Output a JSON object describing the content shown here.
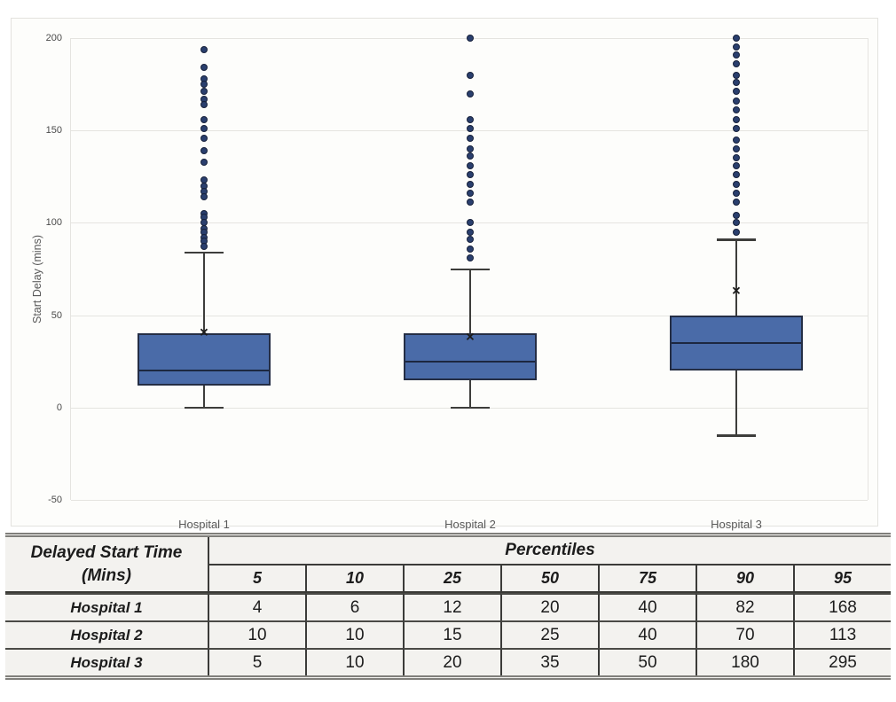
{
  "chart_data": {
    "type": "boxplot",
    "title": "",
    "xlabel": "",
    "ylabel": "Start Delay (mins)",
    "ylim": [
      -50,
      200
    ],
    "yticks": [
      200,
      150,
      100,
      50,
      0,
      -50
    ],
    "grid": true,
    "legend": "none",
    "categories": [
      "Hospital 1",
      "Hospital 2",
      "Hospital 3"
    ],
    "series": [
      {
        "name": "Hospital 1",
        "q1": 12,
        "median": 20,
        "q3": 40,
        "whisker_low": 0,
        "whisker_high": 84,
        "mean": 40,
        "outliers": [
          194,
          184,
          178,
          175,
          171,
          167,
          164,
          156,
          151,
          146,
          139,
          133,
          123,
          120,
          117,
          114,
          105,
          103,
          100,
          97,
          95,
          92,
          90,
          87
        ]
      },
      {
        "name": "Hospital 2",
        "q1": 15,
        "median": 25,
        "q3": 40,
        "whisker_low": 0,
        "whisker_high": 75,
        "mean": 38,
        "outliers": [
          200,
          180,
          170,
          156,
          151,
          146,
          140,
          136,
          131,
          126,
          121,
          116,
          111,
          100,
          95,
          91,
          86,
          81
        ]
      },
      {
        "name": "Hospital 3",
        "q1": 20,
        "median": 35,
        "q3": 50,
        "whisker_low": -15,
        "whisker_high": 91,
        "mean": 63,
        "outliers": [
          200,
          195,
          191,
          186,
          180,
          176,
          171,
          166,
          161,
          156,
          151,
          145,
          140,
          135,
          131,
          126,
          121,
          116,
          111,
          104,
          100,
          95
        ]
      }
    ],
    "colors": {
      "box_fill": "#4a6ba8",
      "box_border": "#252e45",
      "median_line": "#1c2740",
      "whisker": "#3d3d3b",
      "outlier_fill": "#2a3f6e",
      "outlier_border": "#16203a",
      "grid_line": "#e5e4e0",
      "mean_marker": "#1a1a1a"
    }
  },
  "table": {
    "corner_header_line1": "Delayed Start Time",
    "corner_header_line2": "(Mins)",
    "group_header": "Percentiles",
    "columns": [
      "5",
      "10",
      "25",
      "50",
      "75",
      "90",
      "95"
    ],
    "rows": [
      {
        "label": "Hospital 1",
        "values": [
          "4",
          "6",
          "12",
          "20",
          "40",
          "82",
          "168"
        ]
      },
      {
        "label": "Hospital 2",
        "values": [
          "10",
          "10",
          "15",
          "25",
          "40",
          "70",
          "113"
        ]
      },
      {
        "label": "Hospital 3",
        "values": [
          "5",
          "10",
          "20",
          "35",
          "50",
          "180",
          "295"
        ]
      }
    ]
  }
}
